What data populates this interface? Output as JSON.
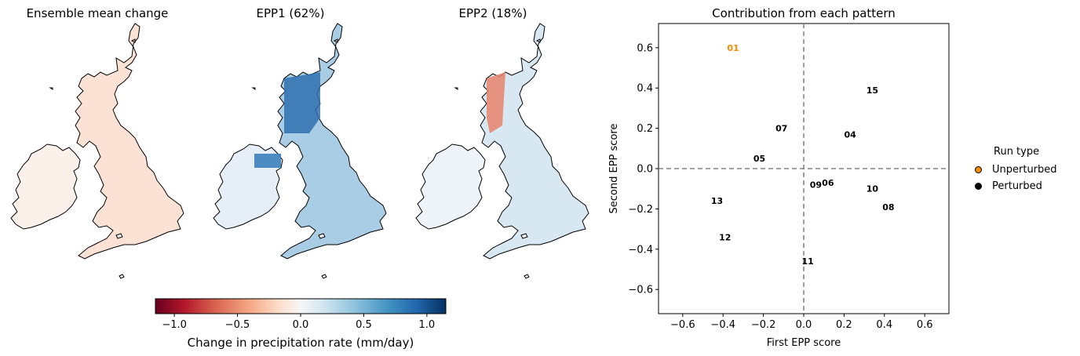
{
  "maps": [
    {
      "title": "Ensemble mean change",
      "fill": "ensemble"
    },
    {
      "title": "EPP1 (62%)",
      "fill": "epp1"
    },
    {
      "title": "EPP2 (18%)",
      "fill": "epp2"
    }
  ],
  "colorbar": {
    "label": "Change in precipitation rate (mm/day)",
    "range": [
      -1.15,
      1.15
    ],
    "ticks": [
      -1.0,
      -0.5,
      0.0,
      0.5,
      1.0
    ],
    "tick_labels": [
      "−1.0",
      "−0.5",
      "0.0",
      "0.5",
      "1.0"
    ],
    "colormap": "RdBu",
    "color_low": "#67001f",
    "color_mid": "#f7f7f7",
    "color_high": "#053061"
  },
  "legend": {
    "title": "Run type",
    "entries": [
      {
        "label": "Unperturbed",
        "color": "#ff8c00"
      },
      {
        "label": "Perturbed",
        "color": "#000000"
      }
    ]
  },
  "chart_data": {
    "type": "scatter",
    "title": "Contribution from each pattern",
    "xlabel": "First EPP score",
    "ylabel": "Second EPP score",
    "xlim": [
      -0.72,
      0.72
    ],
    "ylim": [
      -0.72,
      0.72
    ],
    "xticks": [
      -0.6,
      -0.4,
      -0.2,
      0.0,
      0.2,
      0.4,
      0.6
    ],
    "yticks": [
      -0.6,
      -0.4,
      -0.2,
      0.0,
      0.2,
      0.4,
      0.6
    ],
    "xtick_labels": [
      "−0.6",
      "−0.4",
      "−0.2",
      "0.0",
      "0.2",
      "0.4",
      "0.6"
    ],
    "ytick_labels": [
      "−0.6",
      "−0.4",
      "−0.2",
      "0.0",
      "0.2",
      "0.4",
      "0.6"
    ],
    "reference_lines": {
      "x": 0.0,
      "y": 0.0,
      "style": "dashed",
      "color": "#808080"
    },
    "grid": false,
    "legend_position": "outside-right",
    "points": [
      {
        "label": "01",
        "x": -0.35,
        "y": 0.6,
        "run_type": "Unperturbed"
      },
      {
        "label": "15",
        "x": 0.34,
        "y": 0.39,
        "run_type": "Perturbed"
      },
      {
        "label": "07",
        "x": -0.11,
        "y": 0.2,
        "run_type": "Perturbed"
      },
      {
        "label": "04",
        "x": 0.23,
        "y": 0.17,
        "run_type": "Perturbed"
      },
      {
        "label": "05",
        "x": -0.22,
        "y": 0.05,
        "run_type": "Perturbed"
      },
      {
        "label": "09",
        "x": 0.06,
        "y": -0.08,
        "run_type": "Perturbed"
      },
      {
        "label": "06",
        "x": 0.12,
        "y": -0.07,
        "run_type": "Perturbed"
      },
      {
        "label": "10",
        "x": 0.34,
        "y": -0.1,
        "run_type": "Perturbed"
      },
      {
        "label": "13",
        "x": -0.43,
        "y": -0.16,
        "run_type": "Perturbed"
      },
      {
        "label": "08",
        "x": 0.42,
        "y": -0.19,
        "run_type": "Perturbed"
      },
      {
        "label": "12",
        "x": -0.39,
        "y": -0.34,
        "run_type": "Perturbed"
      },
      {
        "label": "11",
        "x": 0.02,
        "y": -0.46,
        "run_type": "Perturbed"
      }
    ]
  }
}
